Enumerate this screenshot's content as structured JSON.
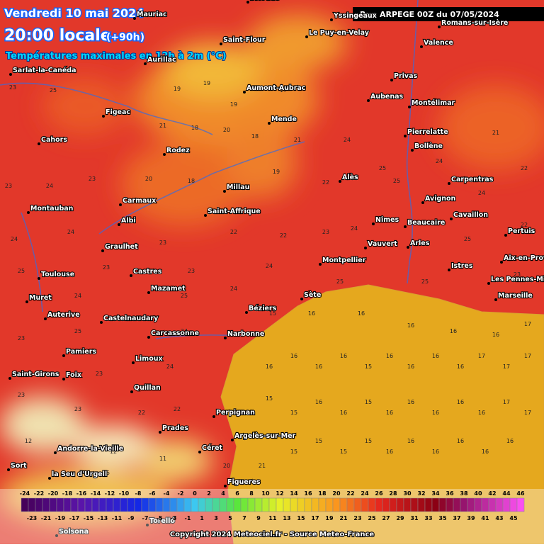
{
  "header": {
    "date": "Vendredi 10 mai 2024",
    "time": "20:00 locale",
    "lead": "(+90h)",
    "subtitle": "Températures maximales en 12h à 2m (°C)",
    "run": "Run ARPEGE 00Z du 07/05/2024"
  },
  "cities": [
    "Brioude",
    "Yssingeaux",
    "Mauriac",
    "Saint-Flour",
    "Le Puy-en-Velay",
    "Romans-sur-Isère",
    "Valence",
    "Aurillac",
    "Sarlat-la-Canéda",
    "Privas",
    "Aumont-Aubrac",
    "Aubenas",
    "Montélimar",
    "Figeac",
    "Mende",
    "Pierrelatte",
    "Cahors",
    "Bollène",
    "Rodez",
    "Alès",
    "Carpentras",
    "Millau",
    "Carmaux",
    "Avignon",
    "Montauban",
    "Saint-Affrique",
    "Cavaillon",
    "Albi",
    "Nîmes",
    "Beaucaire",
    "Pertuis",
    "Graulhet",
    "Vauvert",
    "Arles",
    "Aix-en-Provence",
    "Montpellier",
    "Castres",
    "Istres",
    "Toulouse",
    "Les Pennes-Mirabeau",
    "Mazamet",
    "Muret",
    "Sète",
    "Marseille",
    "Béziers",
    "Castelnaudary",
    "Auterive",
    "Carcassonne",
    "Narbonne",
    "Pamiers",
    "Limoux",
    "Saint-Girons",
    "Foix",
    "Quillan",
    "Perpignan",
    "Prades",
    "Argelès-sur-Mer",
    "Céret",
    "Andorre-la-Vieille",
    "Sort",
    "la Seu d'Urgell",
    "Figueres",
    "Torelló",
    "Solsona"
  ],
  "temperatures": [
    16,
    16,
    16,
    16,
    15,
    16,
    16,
    16,
    16,
    17,
    17,
    17,
    15,
    15,
    16,
    16,
    15,
    16,
    16,
    16,
    16,
    16,
    17,
    17,
    15,
    15,
    15,
    15,
    16,
    16,
    16,
    16,
    16,
    16,
    15,
    16,
    16,
    16,
    16,
    16,
    17,
    23,
    25,
    19,
    19,
    19,
    17,
    21,
    18,
    20,
    18,
    21,
    24,
    25,
    24,
    21,
    22,
    23,
    24,
    23,
    20,
    18,
    19,
    22,
    25,
    24,
    22,
    24,
    24,
    23,
    22,
    22,
    23,
    24,
    25,
    25,
    23,
    23,
    24,
    25,
    25,
    23,
    24,
    25,
    24,
    23,
    25,
    24,
    23,
    24,
    23,
    23,
    22,
    22,
    12,
    12,
    11,
    15,
    20,
    21
  ],
  "scale": {
    "top": [
      -24,
      -22,
      -20,
      -18,
      -16,
      -14,
      -12,
      -10,
      -8,
      -6,
      -4,
      -2,
      0,
      2,
      4,
      6,
      8,
      10,
      12,
      14,
      16,
      18,
      20,
      22,
      24,
      26,
      28,
      30,
      32,
      34,
      36,
      38,
      40,
      42,
      44,
      46
    ],
    "bottom": [
      -23,
      -21,
      -19,
      -17,
      -15,
      -13,
      -11,
      -9,
      -7,
      -5,
      -3,
      -1,
      1,
      3,
      5,
      7,
      9,
      11,
      13,
      15,
      17,
      19,
      21,
      23,
      25,
      27,
      29,
      31,
      33,
      35,
      37,
      39,
      41,
      43,
      45
    ]
  },
  "footer": {
    "copyright": "Copyright 2024 Meteociel.fr - Source Meteo-France"
  }
}
